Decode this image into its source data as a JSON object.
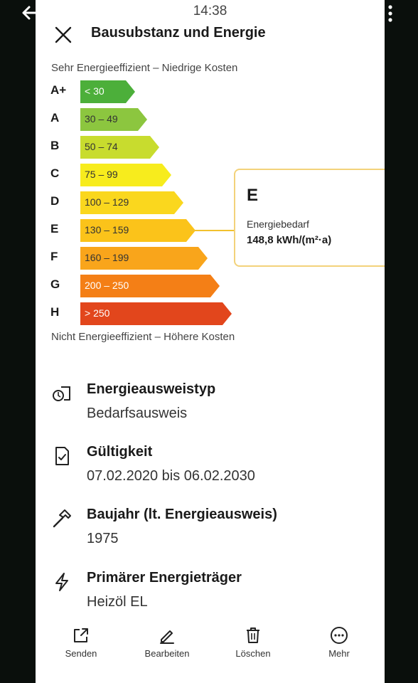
{
  "status_bar": {
    "time": "14:38"
  },
  "header": {
    "title": "Bausubstanz und Energie"
  },
  "energy_scale": {
    "top_label": "Sehr Energieeffizient – Niedrige Kosten",
    "bottom_label": "Nicht Energieeffizient – Höhere Kosten",
    "classes": [
      {
        "letter": "A+",
        "range": "< 30",
        "color": "#4caf3a",
        "text_color": "#ffffff"
      },
      {
        "letter": "A",
        "range": "30 – 49",
        "color": "#8cc63f",
        "text_color": "#333333"
      },
      {
        "letter": "B",
        "range": "50 – 74",
        "color": "#c8dc2e",
        "text_color": "#333333"
      },
      {
        "letter": "C",
        "range": "75 – 99",
        "color": "#f7ec1d",
        "text_color": "#333333"
      },
      {
        "letter": "D",
        "range": "100 – 129",
        "color": "#fad71e",
        "text_color": "#333333"
      },
      {
        "letter": "E",
        "range": "130 – 159",
        "color": "#fbc31a",
        "text_color": "#333333"
      },
      {
        "letter": "F",
        "range": "160 – 199",
        "color": "#f9a51b",
        "text_color": "#333333"
      },
      {
        "letter": "G",
        "range": "200 – 250",
        "color": "#f47f16",
        "text_color": "#ffffff"
      },
      {
        "letter": "H",
        "range": "> 250",
        "color": "#e2461c",
        "text_color": "#ffffff"
      }
    ]
  },
  "result": {
    "class": "E",
    "label": "Energiebedarf",
    "value": "148,8 kWh/(m²·a)"
  },
  "info": [
    {
      "icon": "certificate-icon",
      "title": "Energieausweistyp",
      "value": "Bedarfsausweis"
    },
    {
      "icon": "document-check-icon",
      "title": "Gültigkeit",
      "value": "07.02.2020 bis 06.02.2030"
    },
    {
      "icon": "hammer-icon",
      "title": "Baujahr (lt. Energieausweis)",
      "value": "1975"
    },
    {
      "icon": "lightning-icon",
      "title": "Primärer Energieträger",
      "value": "Heizöl EL"
    }
  ],
  "bottom_bar": {
    "send": "Senden",
    "edit": "Bearbeiten",
    "delete": "Löschen",
    "more": "Mehr"
  }
}
